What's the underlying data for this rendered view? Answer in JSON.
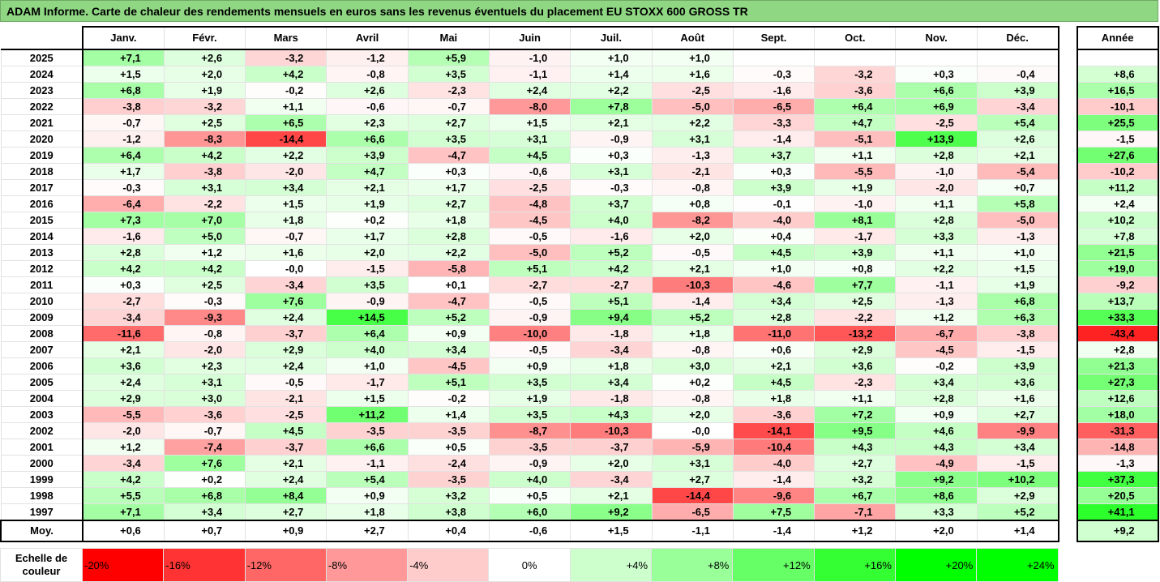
{
  "title": "ADAM Informe. Carte de chaleur des rendements mensuels en euros sans les revenus éventuels du placement EU STOXX 600 GROSS TR",
  "chart_data": {
    "type": "heatmap",
    "columns": [
      "Janv.",
      "Févr.",
      "Mars",
      "Avril",
      "Mai",
      "Juin",
      "Juil.",
      "Août",
      "Sept.",
      "Oct.",
      "Nov.",
      "Déc."
    ],
    "annual_label": "Année",
    "rows": [
      {
        "year": "2025",
        "values": [
          "+7,1",
          "+2,6",
          "-3,2",
          "-1,2",
          "+5,9",
          "-1,0",
          "+1,0",
          "+1,0",
          "",
          "",
          "",
          ""
        ],
        "annual": ""
      },
      {
        "year": "2024",
        "values": [
          "+1,5",
          "+2,0",
          "+4,2",
          "-0,8",
          "+3,5",
          "-1,1",
          "+1,4",
          "+1,6",
          "-0,3",
          "-3,2",
          "+0,3",
          "-0,4"
        ],
        "annual": "+8,6"
      },
      {
        "year": "2023",
        "values": [
          "+6,8",
          "+1,9",
          "-0,2",
          "+2,6",
          "-2,3",
          "+2,4",
          "+2,2",
          "-2,5",
          "-1,6",
          "-3,6",
          "+6,6",
          "+3,9"
        ],
        "annual": "+16,5"
      },
      {
        "year": "2022",
        "values": [
          "-3,8",
          "-3,2",
          "+1,1",
          "-0,6",
          "-0,7",
          "-8,0",
          "+7,8",
          "-5,0",
          "-6,5",
          "+6,4",
          "+6,9",
          "-3,4"
        ],
        "annual": "-10,1"
      },
      {
        "year": "2021",
        "values": [
          "-0,7",
          "+2,5",
          "+6,5",
          "+2,3",
          "+2,7",
          "+1,5",
          "+2,1",
          "+2,2",
          "-3,3",
          "+4,7",
          "-2,5",
          "+5,4"
        ],
        "annual": "+25,5"
      },
      {
        "year": "2020",
        "values": [
          "-1,2",
          "-8,3",
          "-14,4",
          "+6,6",
          "+3,5",
          "+3,1",
          "-0,9",
          "+3,1",
          "-1,4",
          "-5,1",
          "+13,9",
          "+2,6"
        ],
        "annual": "-1,5"
      },
      {
        "year": "2019",
        "values": [
          "+6,4",
          "+4,2",
          "+2,2",
          "+3,9",
          "-4,7",
          "+4,5",
          "+0,3",
          "-1,3",
          "+3,7",
          "+1,1",
          "+2,8",
          "+2,1"
        ],
        "annual": "+27,6"
      },
      {
        "year": "2018",
        "values": [
          "+1,7",
          "-3,8",
          "-2,0",
          "+4,7",
          "+0,3",
          "-0,6",
          "+3,1",
          "-2,1",
          "+0,3",
          "-5,5",
          "-1,0",
          "-5,4"
        ],
        "annual": "-10,2"
      },
      {
        "year": "2017",
        "values": [
          "-0,3",
          "+3,1",
          "+3,4",
          "+2,1",
          "+1,7",
          "-2,5",
          "-0,3",
          "-0,8",
          "+3,9",
          "+1,9",
          "-2,0",
          "+0,7"
        ],
        "annual": "+11,2"
      },
      {
        "year": "2016",
        "values": [
          "-6,4",
          "-2,2",
          "+1,5",
          "+1,9",
          "+2,7",
          "-4,8",
          "+3,7",
          "+0,8",
          "-0,1",
          "-1,0",
          "+1,1",
          "+5,8"
        ],
        "annual": "+2,4"
      },
      {
        "year": "2015",
        "values": [
          "+7,3",
          "+7,0",
          "+1,8",
          "+0,2",
          "+1,8",
          "-4,5",
          "+4,0",
          "-8,2",
          "-4,0",
          "+8,1",
          "+2,8",
          "-5,0"
        ],
        "annual": "+10,2"
      },
      {
        "year": "2014",
        "values": [
          "-1,6",
          "+5,0",
          "-0,7",
          "+1,7",
          "+2,8",
          "-0,5",
          "-1,6",
          "+2,0",
          "+0,4",
          "-1,7",
          "+3,3",
          "-1,3"
        ],
        "annual": "+7,8"
      },
      {
        "year": "2013",
        "values": [
          "+2,8",
          "+1,2",
          "+1,6",
          "+2,0",
          "+2,2",
          "-5,0",
          "+5,2",
          "-0,5",
          "+4,5",
          "+3,9",
          "+1,1",
          "+1,0"
        ],
        "annual": "+21,5"
      },
      {
        "year": "2012",
        "values": [
          "+4,2",
          "+4,2",
          "-0,0",
          "-1,5",
          "-5,8",
          "+5,1",
          "+4,2",
          "+2,1",
          "+1,0",
          "+0,8",
          "+2,2",
          "+1,5"
        ],
        "annual": "+19,0"
      },
      {
        "year": "2011",
        "values": [
          "+0,3",
          "+2,5",
          "-3,4",
          "+3,5",
          "+0,1",
          "-2,7",
          "-2,7",
          "-10,3",
          "-4,6",
          "+7,7",
          "-1,1",
          "+1,9"
        ],
        "annual": "-9,2"
      },
      {
        "year": "2010",
        "values": [
          "-2,7",
          "-0,3",
          "+7,6",
          "-0,9",
          "-4,7",
          "-0,5",
          "+5,1",
          "-1,4",
          "+3,4",
          "+2,5",
          "-1,3",
          "+6,8"
        ],
        "annual": "+13,7"
      },
      {
        "year": "2009",
        "values": [
          "-3,4",
          "-9,3",
          "+2,4",
          "+14,5",
          "+5,2",
          "-0,9",
          "+9,4",
          "+5,2",
          "+2,8",
          "-2,2",
          "+1,2",
          "+6,3"
        ],
        "annual": "+33,3"
      },
      {
        "year": "2008",
        "values": [
          "-11,6",
          "-0,8",
          "-3,7",
          "+6,4",
          "+0,9",
          "-10,0",
          "-1,8",
          "+1,8",
          "-11,0",
          "-13,2",
          "-6,7",
          "-3,8"
        ],
        "annual": "-43,4"
      },
      {
        "year": "2007",
        "values": [
          "+2,1",
          "-2,0",
          "+2,9",
          "+4,0",
          "+3,4",
          "-0,5",
          "-3,4",
          "-0,8",
          "+0,6",
          "+2,9",
          "-4,5",
          "-1,5"
        ],
        "annual": "+2,8"
      },
      {
        "year": "2006",
        "values": [
          "+3,6",
          "+2,3",
          "+2,4",
          "+1,0",
          "-4,5",
          "+0,9",
          "+1,8",
          "+3,0",
          "+2,1",
          "+3,6",
          "-0,2",
          "+3,9"
        ],
        "annual": "+21,3"
      },
      {
        "year": "2005",
        "values": [
          "+2,4",
          "+3,1",
          "-0,5",
          "-1,7",
          "+5,1",
          "+3,5",
          "+3,4",
          "+0,2",
          "+4,5",
          "-2,3",
          "+3,4",
          "+3,6"
        ],
        "annual": "+27,3"
      },
      {
        "year": "2004",
        "values": [
          "+2,9",
          "+3,0",
          "-2,1",
          "+1,5",
          "-0,2",
          "+1,9",
          "-1,8",
          "-0,8",
          "+1,8",
          "+1,1",
          "+2,8",
          "+1,6"
        ],
        "annual": "+12,6"
      },
      {
        "year": "2003",
        "values": [
          "-5,5",
          "-3,6",
          "-2,5",
          "+11,2",
          "+1,4",
          "+3,5",
          "+4,3",
          "+2,0",
          "-3,6",
          "+7,2",
          "+0,9",
          "+2,7"
        ],
        "annual": "+18,0"
      },
      {
        "year": "2002",
        "values": [
          "-2,0",
          "-0,7",
          "+4,5",
          "-3,5",
          "-3,5",
          "-8,7",
          "-10,3",
          "-0,0",
          "-14,1",
          "+9,5",
          "+4,6",
          "-9,9"
        ],
        "annual": "-31,3"
      },
      {
        "year": "2001",
        "values": [
          "+1,2",
          "-7,4",
          "-3,7",
          "+6,6",
          "+0,5",
          "-3,5",
          "-3,7",
          "-5,9",
          "-10,4",
          "+4,3",
          "+4,3",
          "+3,4"
        ],
        "annual": "-14,8"
      },
      {
        "year": "2000",
        "values": [
          "-3,4",
          "+7,6",
          "+2,1",
          "-1,1",
          "-2,4",
          "-0,9",
          "+2,0",
          "+3,1",
          "-4,0",
          "+2,7",
          "-4,9",
          "-1,5"
        ],
        "annual": "-1,3"
      },
      {
        "year": "1999",
        "values": [
          "+4,2",
          "+0,2",
          "+2,4",
          "+5,4",
          "-3,5",
          "+4,0",
          "-3,4",
          "+2,7",
          "-1,4",
          "+3,2",
          "+9,2",
          "+10,2"
        ],
        "annual": "+37,3"
      },
      {
        "year": "1998",
        "values": [
          "+5,5",
          "+6,8",
          "+8,4",
          "+0,9",
          "+3,2",
          "+0,5",
          "+2,1",
          "-14,4",
          "-9,6",
          "+6,7",
          "+8,6",
          "+2,9"
        ],
        "annual": "+20,5"
      },
      {
        "year": "1997",
        "values": [
          "+7,1",
          "+3,4",
          "+2,7",
          "+1,8",
          "+3,8",
          "+6,0",
          "+9,2",
          "-6,5",
          "+7,5",
          "-7,1",
          "+3,3",
          "+5,2"
        ],
        "annual": "+41,1"
      }
    ],
    "average": {
      "label": "Moy.",
      "values": [
        "+0,6",
        "+0,7",
        "+0,9",
        "+2,7",
        "+0,4",
        "-0,6",
        "+1,5",
        "-1,1",
        "-1,4",
        "+1,2",
        "+2,0",
        "+1,4"
      ],
      "annual": "+9,2"
    },
    "scale": {
      "label": "Echelle de couleur",
      "stops": [
        {
          "text": "-20%",
          "value": -20,
          "color": "#ff0000"
        },
        {
          "text": "-16%",
          "value": -16,
          "color": "#ff3333"
        },
        {
          "text": "-12%",
          "value": -12,
          "color": "#ff6666"
        },
        {
          "text": "-8%",
          "value": -8,
          "color": "#ff9999"
        },
        {
          "text": "-4%",
          "value": -4,
          "color": "#ffcccc"
        },
        {
          "text": "0%",
          "value": 0,
          "color": "#ffffff"
        },
        {
          "text": "+4%",
          "value": 4,
          "color": "#ccffcc"
        },
        {
          "text": "+8%",
          "value": 8,
          "color": "#99ff99"
        },
        {
          "text": "+12%",
          "value": 12,
          "color": "#66ff66"
        },
        {
          "text": "+16%",
          "value": 16,
          "color": "#33ff33"
        },
        {
          "text": "+20%",
          "value": 20,
          "color": "#00ff00"
        },
        {
          "text": "+24%",
          "value": 24,
          "color": "#00ff00"
        }
      ]
    }
  }
}
